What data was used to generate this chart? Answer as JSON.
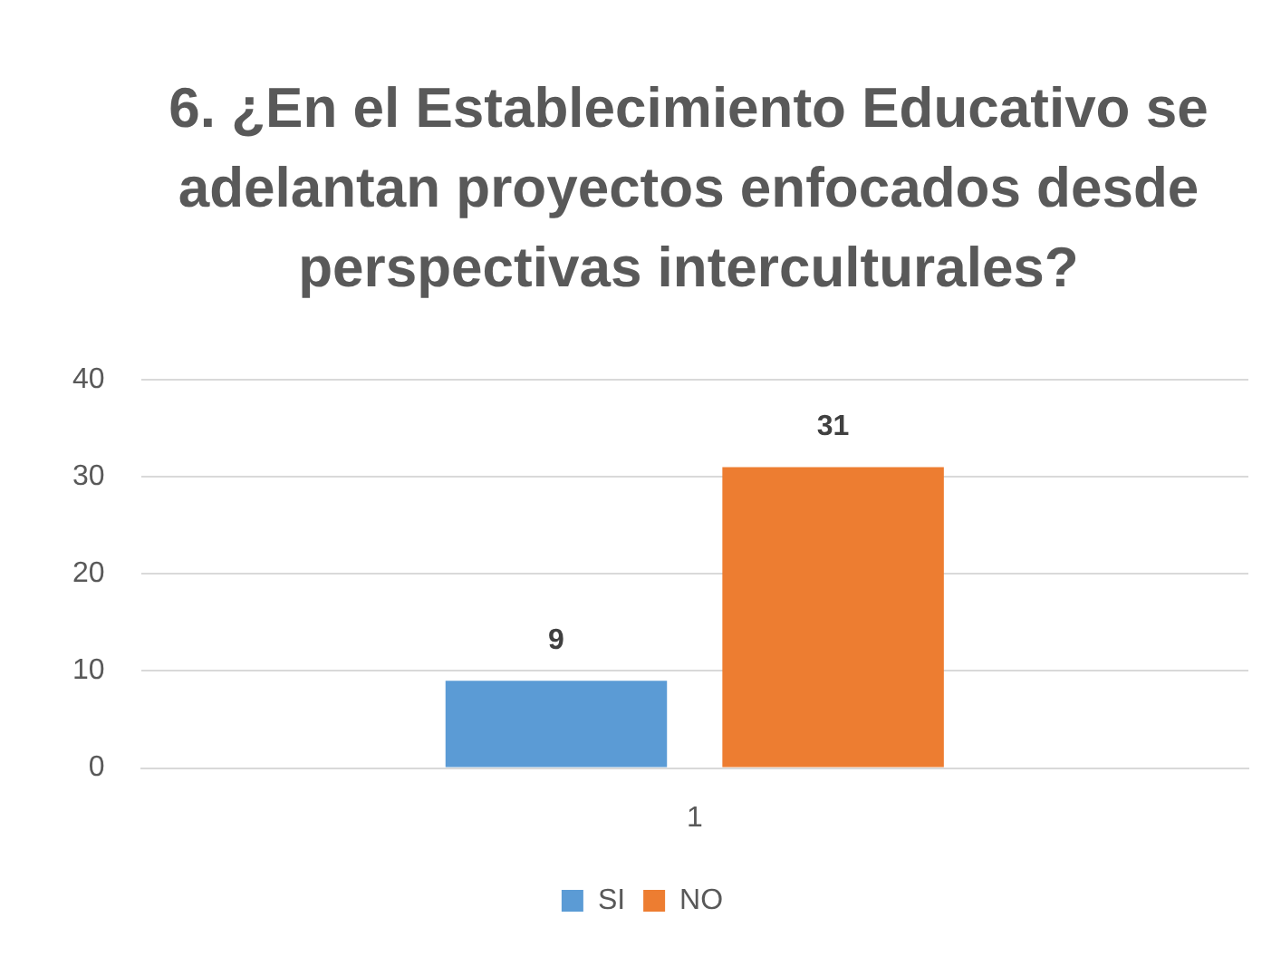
{
  "chart_data": {
    "type": "bar",
    "title": "6. ¿En el Establecimiento Educativo se adelantan proyectos enfocados desde perspectivas interculturales?",
    "categories": [
      "1"
    ],
    "series": [
      {
        "name": "SI",
        "color": "#5b9bd5",
        "values": [
          9
        ]
      },
      {
        "name": "NO",
        "color": "#ed7d31",
        "values": [
          31
        ]
      }
    ],
    "ylim": [
      0,
      40
    ],
    "yticks": [
      0,
      10,
      20,
      30,
      40
    ],
    "grid": "y",
    "legend": "bottom",
    "data_labels": true
  }
}
